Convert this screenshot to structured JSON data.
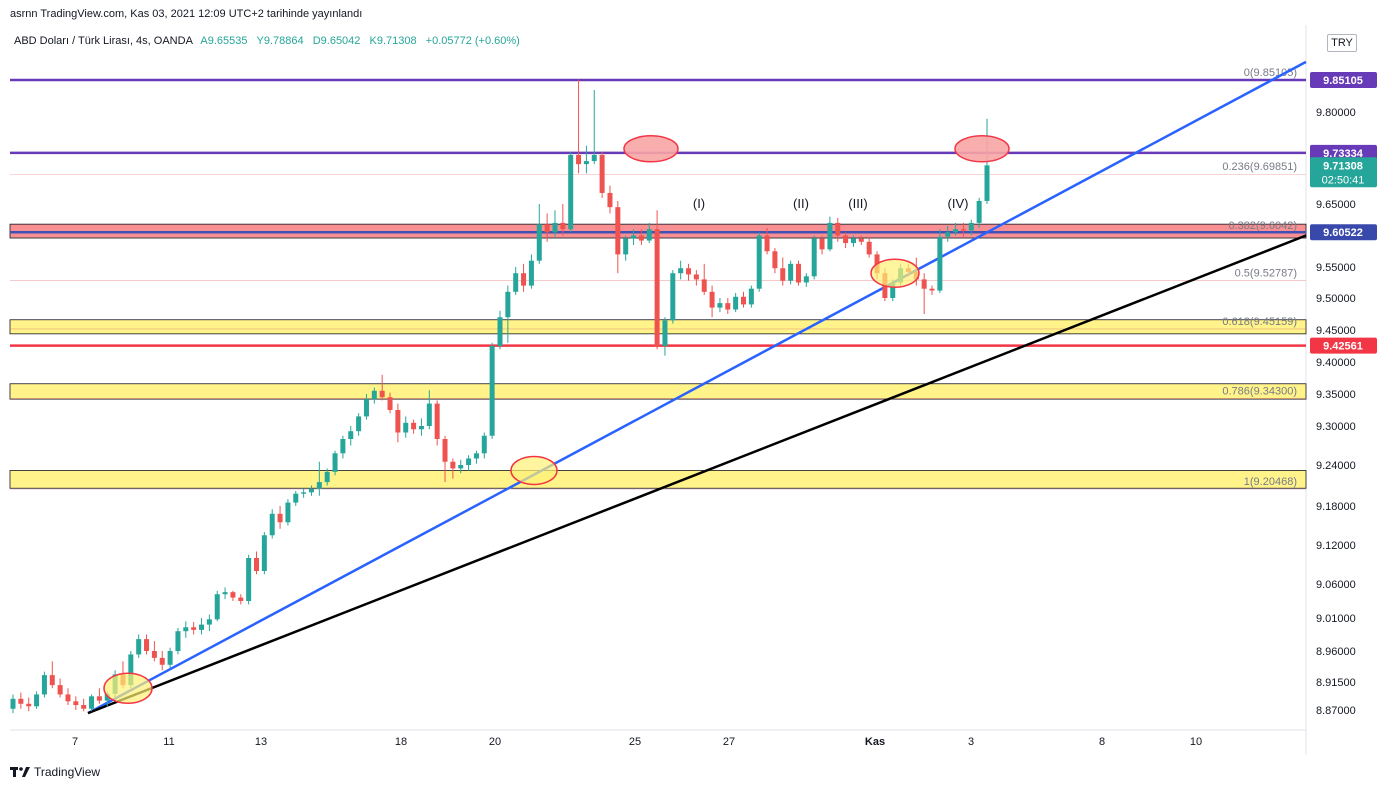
{
  "header": {
    "published": "asrnn TradingView.com, Kas 03, 2021 12:09 UTC+2 tarihinde yayınlandı",
    "symbol": "ABD Doları / Türk Lirası, 4s, OANDA",
    "ohlc": {
      "open": "A9.65535",
      "high": "Y9.78864",
      "low": "D9.65042",
      "close": "K9.71308",
      "change": "+0.05772 (+0.60%)"
    }
  },
  "currency_button": "TRY",
  "footer": {
    "brand": "TradingView"
  },
  "chart_data": {
    "type": "candlestick",
    "x_ticks": [
      "7",
      "11",
      "13",
      "18",
      "20",
      "25",
      "27",
      "Kas",
      "3",
      "8",
      "10"
    ],
    "y_ticks": [
      "9.80000",
      "9.65000",
      "9.55000",
      "9.50000",
      "9.45000",
      "9.40000",
      "9.35000",
      "9.30000",
      "9.24000",
      "9.18000",
      "9.12000",
      "9.06000",
      "9.01000",
      "8.96000",
      "8.91500",
      "8.87000"
    ],
    "fib_levels": [
      {
        "ratio": "0",
        "price": 9.85105,
        "label": "0(9.85105)"
      },
      {
        "ratio": "0.236",
        "price": 9.69851,
        "label": "0.236(9.69851)"
      },
      {
        "ratio": "0.382",
        "price": 9.604,
        "label": "0.382(9.6042)"
      },
      {
        "ratio": "0.5",
        "price": 9.52787,
        "label": "0.5(9.52787)"
      },
      {
        "ratio": "0.618",
        "price": 9.45159,
        "label": "0.618(9.45159)"
      },
      {
        "ratio": "0.786",
        "price": 9.343,
        "label": "0.786(9.34300)"
      },
      {
        "ratio": "1",
        "price": 9.20468,
        "label": "1(9.20468)"
      }
    ],
    "horizontal_levels": [
      {
        "price": 9.85105,
        "label": "9.85105",
        "color": "#673ab7"
      },
      {
        "price": 9.73334,
        "label": "9.73334",
        "color": "#673ab7"
      },
      {
        "price": 9.60522,
        "label": "9.60522",
        "color": "#3f51b5"
      },
      {
        "price": 9.42561,
        "label": "9.42561",
        "color": "#f23645"
      }
    ],
    "current_price": {
      "price": 9.71308,
      "label": "9.71308",
      "countdown": "02:50:41",
      "color": "#26a69a"
    },
    "zones": [
      {
        "from": 9.596,
        "to": 9.618,
        "color": "#f77c80"
      },
      {
        "from": 9.444,
        "to": 9.466,
        "color": "#fff176"
      },
      {
        "from": 9.342,
        "to": 9.366,
        "color": "#fff176"
      },
      {
        "from": 9.206,
        "to": 9.232,
        "color": "#fff176"
      }
    ],
    "wave_labels": [
      "(I)",
      "(II)",
      "(III)",
      "(IV)"
    ],
    "candles": [
      {
        "o": 8.872,
        "h": 8.895,
        "l": 8.865,
        "c": 8.888
      },
      {
        "o": 8.888,
        "h": 8.898,
        "l": 8.872,
        "c": 8.88
      },
      {
        "o": 8.88,
        "h": 8.89,
        "l": 8.868,
        "c": 8.876
      },
      {
        "o": 8.876,
        "h": 8.9,
        "l": 8.872,
        "c": 8.895
      },
      {
        "o": 8.895,
        "h": 8.93,
        "l": 8.89,
        "c": 8.925
      },
      {
        "o": 8.925,
        "h": 8.945,
        "l": 8.905,
        "c": 8.91
      },
      {
        "o": 8.91,
        "h": 8.92,
        "l": 8.89,
        "c": 8.895
      },
      {
        "o": 8.895,
        "h": 8.905,
        "l": 8.878,
        "c": 8.884
      },
      {
        "o": 8.884,
        "h": 8.892,
        "l": 8.87,
        "c": 8.878
      },
      {
        "o": 8.878,
        "h": 8.888,
        "l": 8.868,
        "c": 8.872
      },
      {
        "o": 8.872,
        "h": 8.895,
        "l": 8.868,
        "c": 8.892
      },
      {
        "o": 8.892,
        "h": 8.905,
        "l": 8.88,
        "c": 8.885
      },
      {
        "o": 8.885,
        "h": 8.9,
        "l": 8.875,
        "c": 8.896
      },
      {
        "o": 8.896,
        "h": 8.932,
        "l": 8.89,
        "c": 8.926
      },
      {
        "o": 8.926,
        "h": 8.945,
        "l": 8.905,
        "c": 8.91
      },
      {
        "o": 8.91,
        "h": 8.96,
        "l": 8.905,
        "c": 8.955
      },
      {
        "o": 8.955,
        "h": 8.985,
        "l": 8.95,
        "c": 8.978
      },
      {
        "o": 8.978,
        "h": 8.985,
        "l": 8.955,
        "c": 8.96
      },
      {
        "o": 8.96,
        "h": 8.975,
        "l": 8.945,
        "c": 8.95
      },
      {
        "o": 8.95,
        "h": 8.96,
        "l": 8.932,
        "c": 8.94
      },
      {
        "o": 8.94,
        "h": 8.965,
        "l": 8.935,
        "c": 8.96
      },
      {
        "o": 8.96,
        "h": 8.995,
        "l": 8.955,
        "c": 8.99
      },
      {
        "o": 8.99,
        "h": 9.005,
        "l": 8.98,
        "c": 8.996
      },
      {
        "o": 8.996,
        "h": 9.004,
        "l": 8.985,
        "c": 8.992
      },
      {
        "o": 8.992,
        "h": 9.01,
        "l": 8.985,
        "c": 9.0
      },
      {
        "o": 9.0,
        "h": 9.015,
        "l": 8.99,
        "c": 9.008
      },
      {
        "o": 9.008,
        "h": 9.05,
        "l": 9.005,
        "c": 9.045
      },
      {
        "o": 9.045,
        "h": 9.055,
        "l": 9.038,
        "c": 9.048
      },
      {
        "o": 9.048,
        "h": 9.05,
        "l": 9.035,
        "c": 9.04
      },
      {
        "o": 9.04,
        "h": 9.045,
        "l": 9.03,
        "c": 9.035
      },
      {
        "o": 9.035,
        "h": 9.105,
        "l": 9.03,
        "c": 9.1
      },
      {
        "o": 9.1,
        "h": 9.11,
        "l": 9.075,
        "c": 9.08
      },
      {
        "o": 9.08,
        "h": 9.14,
        "l": 9.075,
        "c": 9.135
      },
      {
        "o": 9.135,
        "h": 9.175,
        "l": 9.13,
        "c": 9.168
      },
      {
        "o": 9.168,
        "h": 9.18,
        "l": 9.145,
        "c": 9.155
      },
      {
        "o": 9.155,
        "h": 9.19,
        "l": 9.15,
        "c": 9.185
      },
      {
        "o": 9.185,
        "h": 9.202,
        "l": 9.18,
        "c": 9.198
      },
      {
        "o": 9.198,
        "h": 9.206,
        "l": 9.192,
        "c": 9.2
      },
      {
        "o": 9.2,
        "h": 9.21,
        "l": 9.195,
        "c": 9.205
      },
      {
        "o": 9.205,
        "h": 9.245,
        "l": 9.195,
        "c": 9.215
      },
      {
        "o": 9.215,
        "h": 9.235,
        "l": 9.21,
        "c": 9.23
      },
      {
        "o": 9.23,
        "h": 9.262,
        "l": 9.225,
        "c": 9.258
      },
      {
        "o": 9.258,
        "h": 9.285,
        "l": 9.25,
        "c": 9.28
      },
      {
        "o": 9.28,
        "h": 9.3,
        "l": 9.27,
        "c": 9.292
      },
      {
        "o": 9.292,
        "h": 9.32,
        "l": 9.285,
        "c": 9.315
      },
      {
        "o": 9.315,
        "h": 9.35,
        "l": 9.31,
        "c": 9.342
      },
      {
        "o": 9.342,
        "h": 9.36,
        "l": 9.335,
        "c": 9.355
      },
      {
        "o": 9.355,
        "h": 9.38,
        "l": 9.34,
        "c": 9.345
      },
      {
        "o": 9.345,
        "h": 9.352,
        "l": 9.32,
        "c": 9.325
      },
      {
        "o": 9.325,
        "h": 9.335,
        "l": 9.275,
        "c": 9.29
      },
      {
        "o": 9.29,
        "h": 9.315,
        "l": 9.282,
        "c": 9.305
      },
      {
        "o": 9.305,
        "h": 9.31,
        "l": 9.288,
        "c": 9.295
      },
      {
        "o": 9.295,
        "h": 9.312,
        "l": 9.285,
        "c": 9.3
      },
      {
        "o": 9.3,
        "h": 9.356,
        "l": 9.295,
        "c": 9.335
      },
      {
        "o": 9.335,
        "h": 9.34,
        "l": 9.27,
        "c": 9.28
      },
      {
        "o": 9.28,
        "h": 9.285,
        "l": 9.215,
        "c": 9.245
      },
      {
        "o": 9.245,
        "h": 9.25,
        "l": 9.22,
        "c": 9.235
      },
      {
        "o": 9.235,
        "h": 9.248,
        "l": 9.228,
        "c": 9.24
      },
      {
        "o": 9.24,
        "h": 9.255,
        "l": 9.232,
        "c": 9.25
      },
      {
        "o": 9.25,
        "h": 9.262,
        "l": 9.242,
        "c": 9.258
      },
      {
        "o": 9.258,
        "h": 9.29,
        "l": 9.25,
        "c": 9.285
      },
      {
        "o": 9.285,
        "h": 9.43,
        "l": 9.28,
        "c": 9.425
      },
      {
        "o": 9.425,
        "h": 9.48,
        "l": 9.42,
        "c": 9.47
      },
      {
        "o": 9.47,
        "h": 9.52,
        "l": 9.43,
        "c": 9.51
      },
      {
        "o": 9.51,
        "h": 9.55,
        "l": 9.505,
        "c": 9.54
      },
      {
        "o": 9.54,
        "h": 9.555,
        "l": 9.51,
        "c": 9.52
      },
      {
        "o": 9.52,
        "h": 9.57,
        "l": 9.515,
        "c": 9.56
      },
      {
        "o": 9.56,
        "h": 9.65,
        "l": 9.555,
        "c": 9.618
      },
      {
        "o": 9.618,
        "h": 9.635,
        "l": 9.59,
        "c": 9.605
      },
      {
        "o": 9.605,
        "h": 9.64,
        "l": 9.598,
        "c": 9.62
      },
      {
        "o": 9.62,
        "h": 9.65,
        "l": 9.6,
        "c": 9.61
      },
      {
        "o": 9.61,
        "h": 9.735,
        "l": 9.605,
        "c": 9.73
      },
      {
        "o": 9.73,
        "h": 9.852,
        "l": 9.7,
        "c": 9.715
      },
      {
        "o": 9.715,
        "h": 9.745,
        "l": 9.7,
        "c": 9.72
      },
      {
        "o": 9.72,
        "h": 9.835,
        "l": 9.715,
        "c": 9.73
      },
      {
        "o": 9.73,
        "h": 9.735,
        "l": 9.66,
        "c": 9.668
      },
      {
        "o": 9.668,
        "h": 9.68,
        "l": 9.635,
        "c": 9.645
      },
      {
        "o": 9.645,
        "h": 9.655,
        "l": 9.54,
        "c": 9.57
      },
      {
        "o": 9.57,
        "h": 9.6,
        "l": 9.56,
        "c": 9.595
      },
      {
        "o": 9.595,
        "h": 9.61,
        "l": 9.585,
        "c": 9.6
      },
      {
        "o": 9.6,
        "h": 9.61,
        "l": 9.585,
        "c": 9.592
      },
      {
        "o": 9.592,
        "h": 9.62,
        "l": 9.588,
        "c": 9.61
      },
      {
        "o": 9.61,
        "h": 9.64,
        "l": 9.42,
        "c": 9.425
      },
      {
        "o": 9.425,
        "h": 9.47,
        "l": 9.41,
        "c": 9.465
      },
      {
        "o": 9.465,
        "h": 9.545,
        "l": 9.46,
        "c": 9.54
      },
      {
        "o": 9.54,
        "h": 9.56,
        "l": 9.53,
        "c": 9.548
      },
      {
        "o": 9.548,
        "h": 9.555,
        "l": 9.528,
        "c": 9.538
      },
      {
        "o": 9.538,
        "h": 9.545,
        "l": 9.52,
        "c": 9.53
      },
      {
        "o": 9.53,
        "h": 9.555,
        "l": 9.505,
        "c": 9.51
      },
      {
        "o": 9.51,
        "h": 9.52,
        "l": 9.47,
        "c": 9.485
      },
      {
        "o": 9.485,
        "h": 9.5,
        "l": 9.478,
        "c": 9.492
      },
      {
        "o": 9.492,
        "h": 9.5,
        "l": 9.475,
        "c": 9.482
      },
      {
        "o": 9.482,
        "h": 9.508,
        "l": 9.478,
        "c": 9.502
      },
      {
        "o": 9.502,
        "h": 9.51,
        "l": 9.485,
        "c": 9.49
      },
      {
        "o": 9.49,
        "h": 9.52,
        "l": 9.485,
        "c": 9.515
      },
      {
        "o": 9.515,
        "h": 9.605,
        "l": 9.51,
        "c": 9.6
      },
      {
        "o": 9.6,
        "h": 9.612,
        "l": 9.57,
        "c": 9.575
      },
      {
        "o": 9.575,
        "h": 9.58,
        "l": 9.54,
        "c": 9.548
      },
      {
        "o": 9.548,
        "h": 9.565,
        "l": 9.52,
        "c": 9.528
      },
      {
        "o": 9.528,
        "h": 9.56,
        "l": 9.522,
        "c": 9.555
      },
      {
        "o": 9.555,
        "h": 9.56,
        "l": 9.52,
        "c": 9.525
      },
      {
        "o": 9.525,
        "h": 9.54,
        "l": 9.518,
        "c": 9.535
      },
      {
        "o": 9.535,
        "h": 9.6,
        "l": 9.53,
        "c": 9.595
      },
      {
        "o": 9.595,
        "h": 9.6,
        "l": 9.57,
        "c": 9.578
      },
      {
        "o": 9.578,
        "h": 9.63,
        "l": 9.575,
        "c": 9.62
      },
      {
        "o": 9.62,
        "h": 9.628,
        "l": 9.59,
        "c": 9.6
      },
      {
        "o": 9.6,
        "h": 9.605,
        "l": 9.58,
        "c": 9.588
      },
      {
        "o": 9.588,
        "h": 9.6,
        "l": 9.582,
        "c": 9.595
      },
      {
        "o": 9.595,
        "h": 9.6,
        "l": 9.585,
        "c": 9.59
      },
      {
        "o": 9.59,
        "h": 9.598,
        "l": 9.565,
        "c": 9.57
      },
      {
        "o": 9.57,
        "h": 9.575,
        "l": 9.53,
        "c": 9.54
      },
      {
        "o": 9.54,
        "h": 9.548,
        "l": 9.495,
        "c": 9.5
      },
      {
        "o": 9.5,
        "h": 9.53,
        "l": 9.495,
        "c": 9.525
      },
      {
        "o": 9.525,
        "h": 9.555,
        "l": 9.52,
        "c": 9.548
      },
      {
        "o": 9.548,
        "h": 9.555,
        "l": 9.535,
        "c": 9.542
      },
      {
        "o": 9.542,
        "h": 9.565,
        "l": 9.52,
        "c": 9.53
      },
      {
        "o": 9.53,
        "h": 9.54,
        "l": 9.475,
        "c": 9.515
      },
      {
        "o": 9.515,
        "h": 9.52,
        "l": 9.505,
        "c": 9.512
      },
      {
        "o": 9.512,
        "h": 9.61,
        "l": 9.508,
        "c": 9.598
      },
      {
        "o": 9.598,
        "h": 9.615,
        "l": 9.59,
        "c": 9.605
      },
      {
        "o": 9.605,
        "h": 9.62,
        "l": 9.6,
        "c": 9.61
      },
      {
        "o": 9.61,
        "h": 9.62,
        "l": 9.598,
        "c": 9.608
      },
      {
        "o": 9.608,
        "h": 9.625,
        "l": 9.6,
        "c": 9.62
      },
      {
        "o": 9.62,
        "h": 9.66,
        "l": 9.612,
        "c": 9.655
      },
      {
        "o": 9.655,
        "h": 9.789,
        "l": 9.65,
        "c": 9.713
      }
    ]
  }
}
